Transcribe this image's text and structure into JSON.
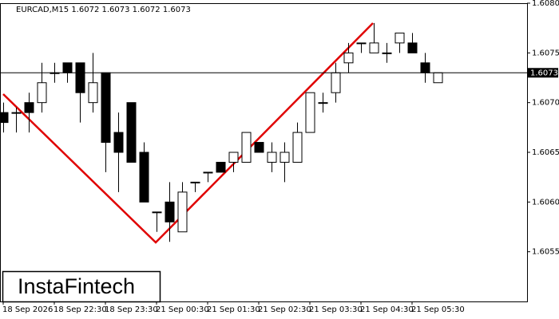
{
  "chart_data": {
    "type": "candlestick",
    "title": "EURCAD,M15  1.6072 1.6073 1.6072 1.6073",
    "categories": [
      "18 Sep 2026",
      null,
      null,
      null,
      "18 Sep 22:30",
      null,
      null,
      null,
      "18 Sep 23:30",
      null,
      null,
      null,
      "21 Sep 00:30",
      null,
      null,
      null,
      "21 Sep 01:30",
      null,
      null,
      null,
      "21 Sep 02:30",
      null,
      null,
      null,
      "21 Sep 03:30",
      null,
      null,
      null,
      "21 Sep 04:30",
      null,
      null,
      null,
      "21 Sep 05:30",
      null,
      null
    ],
    "open": [
      1.6069,
      1.6069,
      1.607,
      1.607,
      1.6073,
      1.6074,
      1.6074,
      1.607,
      1.6073,
      1.6067,
      1.607,
      1.6065,
      1.6059,
      1.606,
      1.6057,
      1.6062,
      1.6063,
      1.6064,
      1.6064,
      1.6064,
      1.6066,
      1.6064,
      1.6064,
      1.6064,
      1.6067,
      1.607,
      1.6071,
      1.6074,
      1.6076,
      1.6075,
      1.6075,
      1.6076,
      1.6076,
      1.6074,
      1.6072
    ],
    "high": [
      1.607,
      1.60695,
      1.6071,
      1.6074,
      1.6074,
      1.6074,
      1.6074,
      1.6075,
      1.6073,
      1.6069,
      1.607,
      1.6066,
      1.6059,
      1.6062,
      1.6062,
      1.6062,
      1.6063,
      1.6064,
      1.6065,
      1.6067,
      1.6066,
      1.6066,
      1.6066,
      1.6068,
      1.6071,
      1.6071,
      1.6074,
      1.6076,
      1.6076,
      1.6078,
      1.6076,
      1.6077,
      1.6077,
      1.6075,
      1.6073
    ],
    "low": [
      1.6067,
      1.6067,
      1.6067,
      1.6069,
      1.6072,
      1.6072,
      1.6068,
      1.6069,
      1.6063,
      1.6061,
      1.6064,
      1.606,
      1.6057,
      1.6056,
      1.6057,
      1.6061,
      1.6062,
      1.6063,
      1.6063,
      1.6064,
      1.6065,
      1.6063,
      1.6062,
      1.6064,
      1.6067,
      1.6069,
      1.607,
      1.6073,
      1.6075,
      1.6075,
      1.6074,
      1.6075,
      1.6075,
      1.6072,
      1.6072
    ],
    "close": [
      1.6068,
      1.6069,
      1.6069,
      1.6072,
      1.6073,
      1.6073,
      1.6071,
      1.6072,
      1.6066,
      1.6065,
      1.6064,
      1.606,
      1.6059,
      1.6058,
      1.6061,
      1.6062,
      1.6063,
      1.6063,
      1.6065,
      1.6067,
      1.6065,
      1.6065,
      1.6065,
      1.6067,
      1.6071,
      1.607,
      1.6073,
      1.6075,
      1.6076,
      1.6076,
      1.6075,
      1.6077,
      1.6075,
      1.6073,
      1.6073
    ],
    "current_price": 1.6073,
    "ylim": [
      1.605,
      1.608
    ],
    "yticks": [
      1.6055,
      {
        "value": 1.606,
        "label": "1.6060"
      },
      1.6065,
      {
        "value": 1.607,
        "label": "1.6070"
      },
      1.6075,
      {
        "value": 1.608,
        "label": "1.6080"
      }
    ],
    "up_color": "#ffffff",
    "down_color": "#000000",
    "logo": "InstaFintech"
  }
}
